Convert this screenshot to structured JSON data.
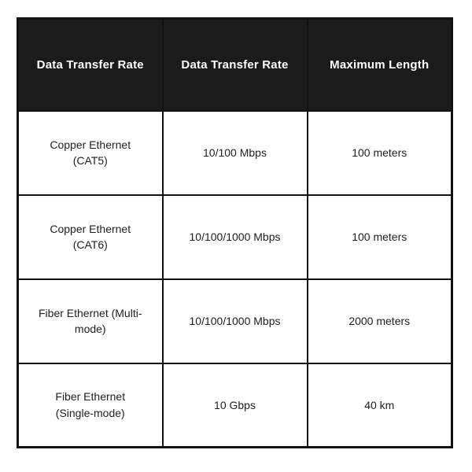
{
  "table": {
    "headers": [
      "Data Transfer Rate",
      "Data Transfer Rate",
      "Maximum Length"
    ],
    "rows": [
      [
        "Copper Ethernet (CAT5)",
        "10/100 Mbps",
        "100 meters"
      ],
      [
        "Copper Ethernet (CAT6)",
        "10/100/1000 Mbps",
        "100 meters"
      ],
      [
        "Fiber Ethernet (Multi-mode)",
        "10/100/1000 Mbps",
        "2000 meters"
      ],
      [
        "Fiber Ethernet (Single-mode)",
        "10 Gbps",
        "40 km"
      ]
    ],
    "colors": {
      "header_bg": "#1b1b1b",
      "header_text": "#ffffff",
      "border": "#111111",
      "body_text": "#1f1f1f",
      "body_bg": "#ffffff",
      "page_bg": "#ffffff"
    }
  },
  "chart_data": {
    "type": "table",
    "title": "",
    "columns": [
      "Data Transfer Rate",
      "Data Transfer Rate",
      "Maximum Length"
    ],
    "rows": [
      {
        "standard": "Copper Ethernet (CAT5)",
        "data_transfer_rate": "10/100 Mbps",
        "maximum_length": "100 meters"
      },
      {
        "standard": "Copper Ethernet (CAT6)",
        "data_transfer_rate": "10/100/1000 Mbps",
        "maximum_length": "100 meters"
      },
      {
        "standard": "Fiber Ethernet (Multi-mode)",
        "data_transfer_rate": "10/100/1000 Mbps",
        "maximum_length": "2000 meters"
      },
      {
        "standard": "Fiber Ethernet (Single-mode)",
        "data_transfer_rate": "10 Gbps",
        "maximum_length": "40 km"
      }
    ],
    "layout_hints": {
      "header_style": "dark background, white bold text",
      "cell_alignment": "center",
      "grid": "on",
      "columns_equal_width": true
    }
  }
}
